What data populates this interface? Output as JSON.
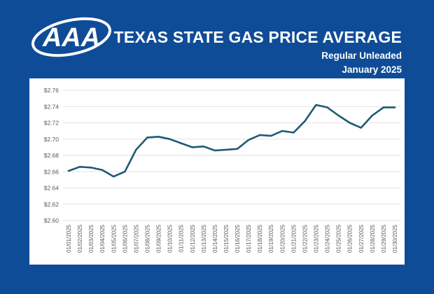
{
  "header": {
    "logo_text": "AAA",
    "title": "TEXAS STATE GAS PRICE AVERAGE",
    "subtitle": "Regular Unleaded",
    "period": "January 2025"
  },
  "colors": {
    "background": "#0f4c97",
    "line": "#1f5a73",
    "grid": "#d9d9d9"
  },
  "chart_data": {
    "type": "line",
    "title": "",
    "xlabel": "",
    "ylabel": "",
    "ylim": [
      2.6,
      2.76
    ],
    "yticks": [
      "$2.76",
      "$2.74",
      "$2.72",
      "$2.70",
      "$2.68",
      "$2.66",
      "$2.64",
      "$2.62",
      "$2.60"
    ],
    "grid": true,
    "legend": "none",
    "categories": [
      "01/01/2025",
      "01/02/2025",
      "01/03/2025",
      "01/04/2025",
      "01/05/2025",
      "01/06/2025",
      "01/07/2025",
      "01/08/2025",
      "01/09/2025",
      "01/10/2025",
      "01/11/2025",
      "01/12/2025",
      "01/13/2025",
      "01/14/2025",
      "01/15/2025",
      "01/16/2025",
      "01/17/2025",
      "01/18/2025",
      "01/19/2025",
      "01/20/2025",
      "01/21/2025",
      "01/22/2025",
      "01/23/2025",
      "01/24/2025",
      "01/25/2025",
      "01/26/2025",
      "01/27/2025",
      "01/28/2025",
      "01/29/2025",
      "01/30/2025"
    ],
    "values": [
      2.661,
      2.666,
      2.665,
      2.662,
      2.654,
      2.66,
      2.687,
      2.702,
      2.703,
      2.7,
      2.695,
      2.69,
      2.691,
      2.686,
      2.687,
      2.688,
      2.699,
      2.705,
      2.704,
      2.71,
      2.708,
      2.722,
      2.742,
      2.739,
      2.729,
      2.72,
      2.714,
      2.729,
      2.739,
      2.739
    ]
  }
}
